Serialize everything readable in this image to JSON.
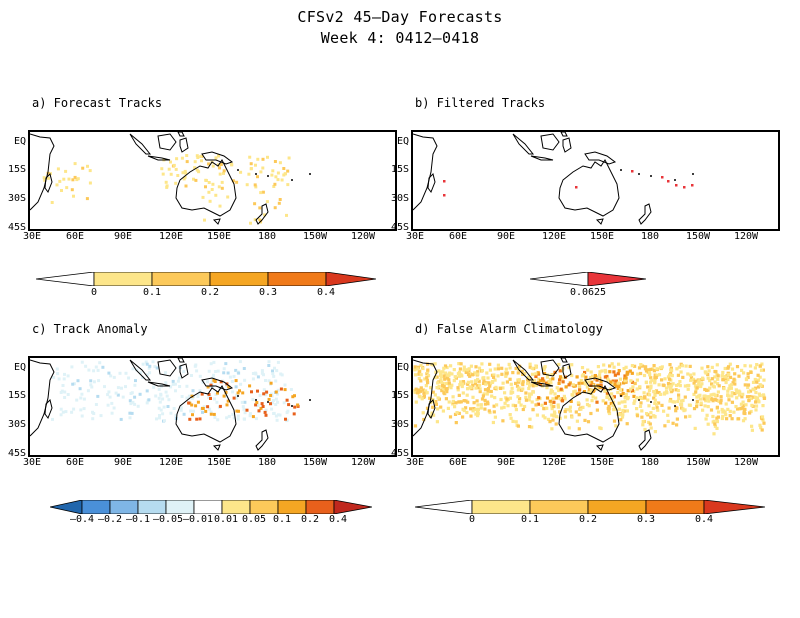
{
  "title_line1": "CFSv2 45–Day Forecasts",
  "title_line2": "Week 4: 0412–0418",
  "lat_labels": [
    "EQ",
    "15S",
    "30S",
    "45S"
  ],
  "lon_labels": [
    "30E",
    "60E",
    "90E",
    "120E",
    "150E",
    "180",
    "150W",
    "120W"
  ],
  "panels": [
    {
      "id": "a",
      "title": "a) Forecast Tracks",
      "colorbar": {
        "labels": [
          "0",
          "0.1",
          "0.2",
          "0.3",
          "0.4"
        ],
        "colors": [
          "#ffffff",
          "#fde68a",
          "#fcc95a",
          "#f5a623",
          "#f07a19",
          "#d9381e"
        ]
      }
    },
    {
      "id": "b",
      "title": "b) Filtered Tracks",
      "colorbar": {
        "labels": [
          "0.0625"
        ],
        "colors": [
          "#ffffff",
          "#e8353a"
        ]
      }
    },
    {
      "id": "c",
      "title": "c) Track Anomaly",
      "colorbar": {
        "labels": [
          "–0.4",
          "–0.2",
          "–0.1",
          "–0.05",
          "–0.01",
          "0.01",
          "0.05",
          "0.1",
          "0.2",
          "0.4"
        ],
        "colors": [
          "#2166ac",
          "#4a90d9",
          "#7fb6e6",
          "#b6dcf0",
          "#dff2f7",
          "#ffffff",
          "#fde68a",
          "#fcc95a",
          "#f5a623",
          "#e8601c",
          "#c0281e"
        ]
      }
    },
    {
      "id": "d",
      "title": "d) False Alarm Climatology",
      "colorbar": {
        "labels": [
          "0",
          "0.1",
          "0.2",
          "0.3",
          "0.4"
        ],
        "colors": [
          "#ffffff",
          "#fde68a",
          "#fcc95a",
          "#f5a623",
          "#f07a19",
          "#d9381e"
        ]
      }
    }
  ]
}
